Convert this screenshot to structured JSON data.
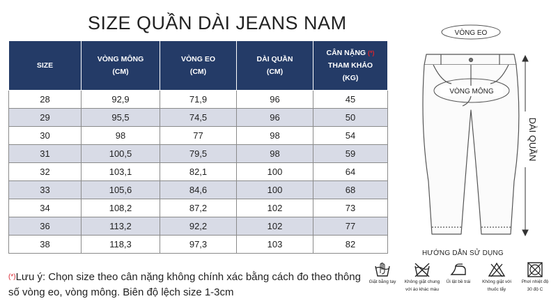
{
  "title": "SIZE QUẦN DÀI JEANS NAM",
  "table": {
    "headers": [
      {
        "l1": "SIZE",
        "l2": ""
      },
      {
        "l1": "VÒNG MÔNG",
        "l2": "(CM)"
      },
      {
        "l1": "VÒNG EO",
        "l2": "(CM)"
      },
      {
        "l1": "DÀI QUẦN",
        "l2": "(CM)"
      },
      {
        "l1": "CÂN NẶNG",
        "l2": "THAM KHẢO",
        "l3": "(KG)",
        "star": "(*)"
      }
    ],
    "rows": [
      [
        "28",
        "92,9",
        "71,9",
        "96",
        "45"
      ],
      [
        "29",
        "95,5",
        "74,5",
        "96",
        "50"
      ],
      [
        "30",
        "98",
        "77",
        "98",
        "54"
      ],
      [
        "31",
        "100,5",
        "79,5",
        "98",
        "59"
      ],
      [
        "32",
        "103,1",
        "82,1",
        "100",
        "64"
      ],
      [
        "33",
        "105,6",
        "84,6",
        "100",
        "68"
      ],
      [
        "34",
        "108,2",
        "87,2",
        "102",
        "73"
      ],
      [
        "36",
        "113,2",
        "92,2",
        "102",
        "77"
      ],
      [
        "38",
        "118,3",
        "97,3",
        "103",
        "82"
      ]
    ]
  },
  "note": {
    "star": "(*)",
    "text": "Lưu ý: Chọn size theo cân nặng không chính xác bằng cách đo theo thông số vòng eo, vòng mông. Biên độ lệch size 1-3cm"
  },
  "diagram": {
    "waist_label": "VÒNG EO",
    "hip_label": "VÒNG MÔNG",
    "length_label": "DÀI QUẦN"
  },
  "care": {
    "title": "HƯỚNG DẪN SỬ DỤNG",
    "items": [
      {
        "icon": "hand-wash-icon",
        "l1": "Giặt bằng tay",
        "l2": ""
      },
      {
        "icon": "do-not-wash-icon",
        "l1": "Không giặt chung",
        "l2": "với áo khác màu"
      },
      {
        "icon": "iron-icon",
        "l1": "Ủi lật bề trái",
        "l2": ""
      },
      {
        "icon": "no-bleach-icon",
        "l1": "Không giặt với",
        "l2": "thuốc tẩy"
      },
      {
        "icon": "tumble-dry-icon",
        "l1": "Phơi nhiệt độ",
        "l2": "30 độ C"
      }
    ]
  },
  "colors": {
    "header_bg": "#243b67",
    "alt_row": "#d8dbe6",
    "accent_red": "#d9232e"
  }
}
